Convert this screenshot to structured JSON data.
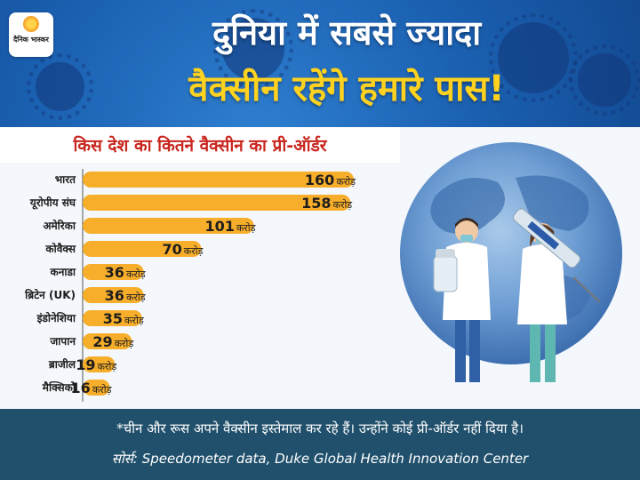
{
  "logo": {
    "text": "दैनिक भास्कर"
  },
  "headline": {
    "line1": "दुनिया में सबसे ज्यादा",
    "line2": "वैक्सीन रहेंगे हमारे पास!"
  },
  "colors": {
    "bar": "#f7ae2a",
    "title": "#c8261e",
    "headline_accent": "#ffd21f",
    "footer": "#21506c"
  },
  "chart_data": {
    "type": "bar",
    "orientation": "horizontal",
    "title": "किस देश का कितने वैक्सीन का प्री-ऑर्डर",
    "categories": [
      "भारत",
      "यूरोपीय संघ",
      "अमेरिका",
      "कोवैक्स",
      "कनाडा",
      "ब्रिटेन (UK)",
      "इंडोनेशिया",
      "जापान",
      "ब्राजील",
      "मैक्सिको"
    ],
    "values": [
      160,
      158,
      101,
      70,
      36,
      36,
      35,
      29,
      19,
      16
    ],
    "unit": "करोड़",
    "grid": false,
    "legend": "none"
  },
  "footer": {
    "note": "*चीन और रूस अपने वैक्सीन इस्तेमाल कर रहे हैं। उन्होंने कोई प्री-ऑर्डर नहीं दिया है।",
    "source": "सोर्स: Speedometer data, Duke Global Health Innovation Center"
  }
}
